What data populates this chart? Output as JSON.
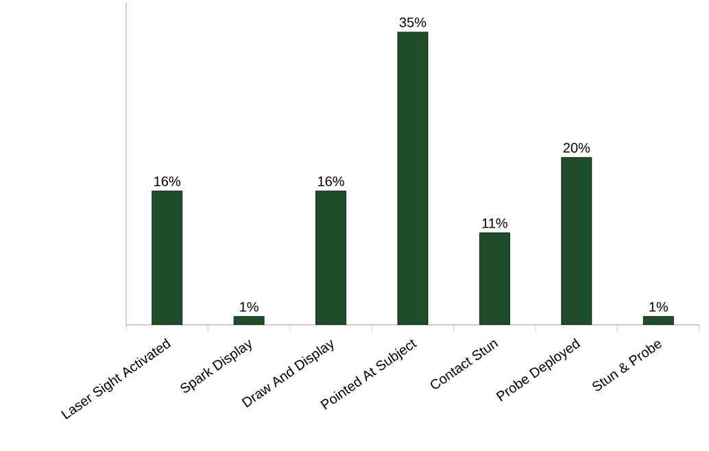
{
  "chart_data": {
    "type": "bar",
    "categories": [
      "Laser Sight Activated",
      "Spark Display",
      "Draw And Display",
      "Pointed At Subject",
      "Contact Stun",
      "Probe Deployed",
      "Stun & Probe"
    ],
    "values": [
      16,
      1,
      16,
      35,
      11,
      20,
      1
    ],
    "value_labels": [
      "16%",
      "1%",
      "16%",
      "35%",
      "11%",
      "20%",
      "1%"
    ],
    "color": "#1f4e2c"
  }
}
